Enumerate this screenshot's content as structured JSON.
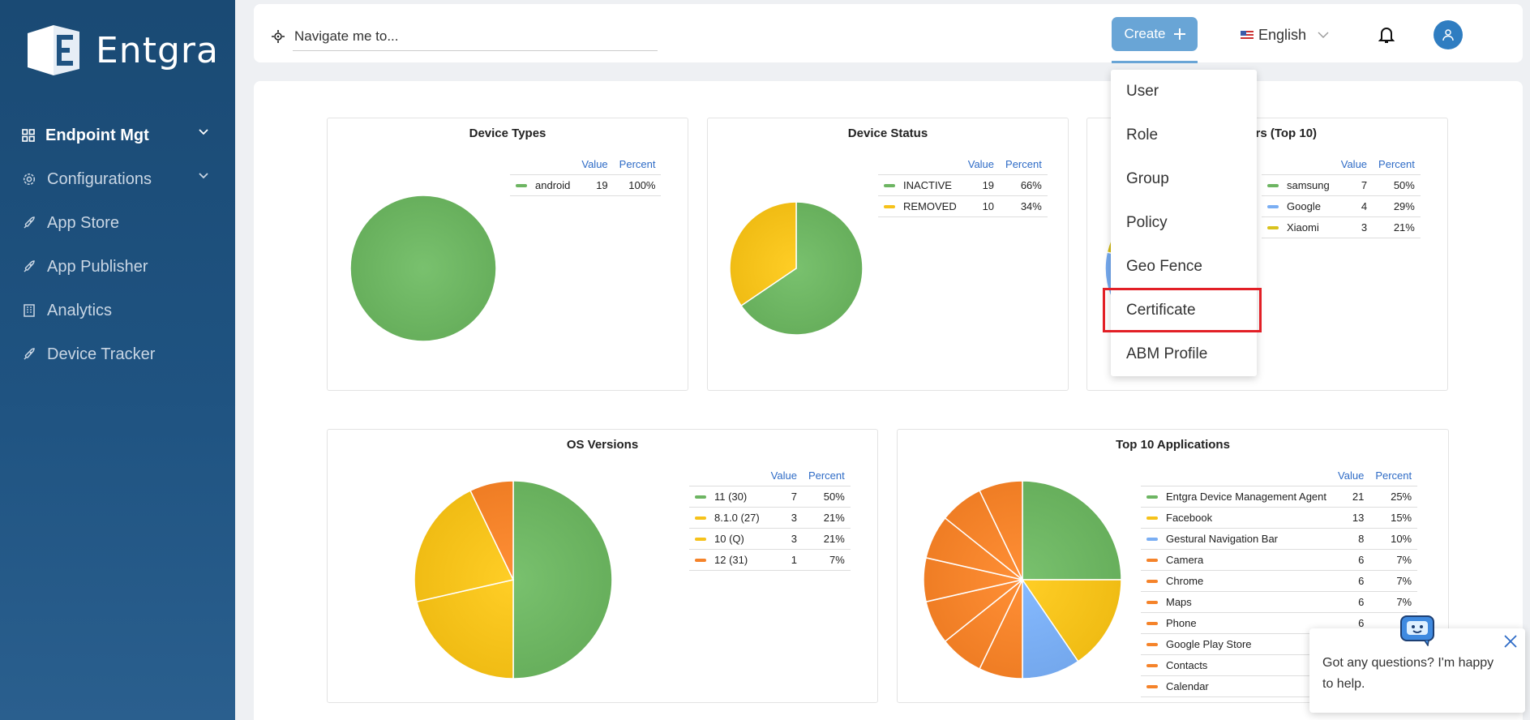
{
  "app": {
    "brand": "Entgra"
  },
  "sidebar": {
    "items": [
      {
        "label": "Endpoint Mgt",
        "icon": "grid-icon",
        "active": true,
        "expandable": true
      },
      {
        "label": "Configurations",
        "icon": "gear-icon",
        "expandable": true
      },
      {
        "label": "App Store",
        "icon": "rocket-icon"
      },
      {
        "label": "App Publisher",
        "icon": "rocket-icon"
      },
      {
        "label": "Analytics",
        "icon": "building-icon"
      },
      {
        "label": "Device Tracker",
        "icon": "rocket-icon"
      }
    ]
  },
  "topbar": {
    "search_placeholder": "Navigate me to...",
    "create_label": "Create",
    "language": "English"
  },
  "create_menu": {
    "items": [
      "User",
      "Role",
      "Group",
      "Policy",
      "Geo Fence",
      "Certificate",
      "ABM Profile"
    ],
    "highlighted": "Certificate"
  },
  "chat": {
    "message": "Got any questions? I'm happy to help."
  },
  "colors": {
    "green": "#6db562",
    "yellow": "#f6c21a",
    "blue": "#7aaef3",
    "orange": "#f5832a",
    "olive": "#d9c21d",
    "accent": "#69a5d6",
    "sidebar": "#1f5381"
  },
  "chart_data": [
    {
      "type": "pie",
      "title": "Device Types",
      "legend_headers": [
        "Value",
        "Percent"
      ],
      "series": [
        {
          "name": "android",
          "value": 19,
          "percent": "100%",
          "color": "#6db562"
        }
      ]
    },
    {
      "type": "pie",
      "title": "Device Status",
      "legend_headers": [
        "Value",
        "Percent"
      ],
      "series": [
        {
          "name": "INACTIVE",
          "value": 19,
          "percent": "66%",
          "color": "#6db562"
        },
        {
          "name": "REMOVED",
          "value": 10,
          "percent": "34%",
          "color": "#f6c21a"
        }
      ]
    },
    {
      "type": "pie",
      "title": "ndors (Top 10)",
      "legend_headers": [
        "Value",
        "Percent"
      ],
      "series": [
        {
          "name": "samsung",
          "value": 7,
          "percent": "50%",
          "color": "#6db562"
        },
        {
          "name": "Google",
          "value": 4,
          "percent": "29%",
          "color": "#7aaef3"
        },
        {
          "name": "Xiaomi",
          "value": 3,
          "percent": "21%",
          "color": "#d9c21d"
        }
      ]
    },
    {
      "type": "pie",
      "title": "OS Versions",
      "legend_headers": [
        "Value",
        "Percent"
      ],
      "series": [
        {
          "name": "11 (30)",
          "value": 7,
          "percent": "50%",
          "color": "#6db562"
        },
        {
          "name": "8.1.0 (27)",
          "value": 3,
          "percent": "21%",
          "color": "#f6c21a"
        },
        {
          "name": "10 (Q)",
          "value": 3,
          "percent": "21%",
          "color": "#f6c21a"
        },
        {
          "name": "12 (31)",
          "value": 1,
          "percent": "7%",
          "color": "#f5832a"
        }
      ]
    },
    {
      "type": "pie",
      "title": "Top 10 Applications",
      "legend_headers": [
        "Value",
        "Percent"
      ],
      "series": [
        {
          "name": "Entgra Device Management Agent",
          "value": 21,
          "percent": "25%",
          "color": "#6db562"
        },
        {
          "name": "Facebook",
          "value": 13,
          "percent": "15%",
          "color": "#f6c21a"
        },
        {
          "name": "Gestural Navigation Bar",
          "value": 8,
          "percent": "10%",
          "color": "#7aaef3"
        },
        {
          "name": "Camera",
          "value": 6,
          "percent": "7%",
          "color": "#f5832a"
        },
        {
          "name": "Chrome",
          "value": 6,
          "percent": "7%",
          "color": "#f5832a"
        },
        {
          "name": "Maps",
          "value": 6,
          "percent": "7%",
          "color": "#f5832a"
        },
        {
          "name": "Phone",
          "value": 6,
          "percent": "",
          "color": "#f5832a"
        },
        {
          "name": "Google Play Store",
          "value": "",
          "percent": "",
          "color": "#f5832a"
        },
        {
          "name": "Contacts",
          "value": "",
          "percent": "",
          "color": "#f5832a"
        },
        {
          "name": "Calendar",
          "value": "",
          "percent": "",
          "color": "#f5832a"
        }
      ],
      "pie_values": [
        21,
        13,
        8,
        6,
        6,
        6,
        6,
        6,
        6,
        6
      ]
    }
  ]
}
